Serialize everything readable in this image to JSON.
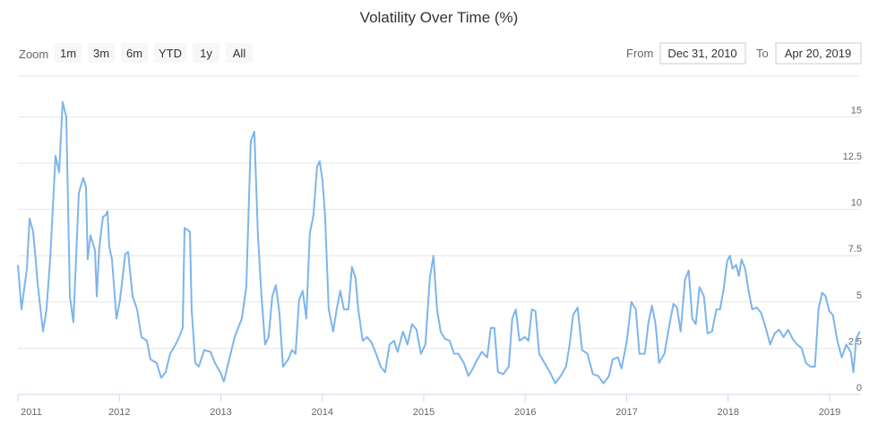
{
  "chart_data": {
    "type": "line",
    "title": "Volatility Over Time (%)",
    "range_selector": {
      "label": "Zoom",
      "buttons": [
        "1m",
        "3m",
        "6m",
        "YTD",
        "1y",
        "All"
      ]
    },
    "date_inputs": {
      "from_label": "From",
      "from": "Dec 31, 2010",
      "to_label": "To",
      "to": "Apr 20, 2019"
    },
    "xlim": [
      2011,
      2019.3
    ],
    "xticks": [
      2011,
      2012,
      2013,
      2014,
      2015,
      2016,
      2017,
      2018,
      2019
    ],
    "ylim": [
      0,
      17.2
    ],
    "yticks": [
      0,
      2.5,
      5,
      7.5,
      10,
      12.5,
      15
    ],
    "grid": true,
    "series": [
      {
        "name": "Volatility",
        "color": "#7cb5ec",
        "x": [
          2011.0,
          2011.035,
          2011.088,
          2011.115,
          2011.15,
          2011.177,
          2011.194,
          2011.247,
          2011.282,
          2011.318,
          2011.371,
          2011.406,
          2011.441,
          2011.477,
          2011.512,
          2011.547,
          2011.6,
          2011.644,
          2011.671,
          2011.688,
          2011.715,
          2011.759,
          2011.777,
          2011.803,
          2011.838,
          2011.865,
          2011.883,
          2011.9,
          2011.927,
          2011.971,
          2012.006,
          2012.059,
          2012.086,
          2012.13,
          2012.174,
          2012.218,
          2012.271,
          2012.306,
          2012.368,
          2012.412,
          2012.456,
          2012.5,
          2012.553,
          2012.589,
          2012.624,
          2012.642,
          2012.695,
          2012.712,
          2012.748,
          2012.783,
          2012.836,
          2012.898,
          2012.942,
          2012.995,
          2013.03,
          2013.083,
          2013.136,
          2013.207,
          2013.251,
          2013.295,
          2013.33,
          2013.365,
          2013.401,
          2013.436,
          2013.471,
          2013.507,
          2013.542,
          2013.577,
          2013.613,
          2013.665,
          2013.701,
          2013.736,
          2013.771,
          2013.807,
          2013.842,
          2013.877,
          2013.913,
          2013.948,
          2013.974,
          2014.001,
          2014.027,
          2014.063,
          2014.107,
          2014.142,
          2014.177,
          2014.213,
          2014.257,
          2014.292,
          2014.327,
          2014.354,
          2014.398,
          2014.442,
          2014.486,
          2014.53,
          2014.575,
          2014.619,
          2014.663,
          2014.707,
          2014.742,
          2014.795,
          2014.839,
          2014.884,
          2014.928,
          2014.972,
          2015.016,
          2015.06,
          2015.095,
          2015.131,
          2015.166,
          2015.21,
          2015.254,
          2015.298,
          2015.342,
          2015.395,
          2015.44,
          2015.484,
          2015.528,
          2015.572,
          2015.625,
          2015.66,
          2015.696,
          2015.731,
          2015.784,
          2015.837,
          2015.872,
          2015.907,
          2015.943,
          2015.996,
          2016.031,
          2016.066,
          2016.101,
          2016.137,
          2016.19,
          2016.243,
          2016.296,
          2016.349,
          2016.402,
          2016.437,
          2016.472,
          2016.516,
          2016.56,
          2016.613,
          2016.666,
          2016.719,
          2016.772,
          2016.825,
          2016.861,
          2016.914,
          2016.949,
          2017.002,
          2017.046,
          2017.09,
          2017.125,
          2017.178,
          2017.214,
          2017.249,
          2017.284,
          2017.319,
          2017.372,
          2017.425,
          2017.461,
          2017.496,
          2017.531,
          2017.575,
          2017.611,
          2017.646,
          2017.681,
          2017.717,
          2017.761,
          2017.796,
          2017.84,
          2017.884,
          2017.92,
          2017.955,
          2017.99,
          2018.017,
          2018.043,
          2018.079,
          2018.105,
          2018.132,
          2018.167,
          2018.202,
          2018.237,
          2018.282,
          2018.326,
          2018.37,
          2018.414,
          2018.458,
          2018.502,
          2018.546,
          2018.59,
          2018.635,
          2018.679,
          2018.723,
          2018.767,
          2018.811,
          2018.855,
          2018.89,
          2018.926,
          2018.961,
          2018.996,
          2019.032,
          2019.076,
          2019.12,
          2019.164,
          2019.208,
          2019.235,
          2019.261,
          2019.297
        ],
        "values": [
          7,
          4.6,
          6.8,
          9.5,
          8.8,
          7.2,
          6,
          3.4,
          4.6,
          7.3,
          12.9,
          12,
          15.8,
          15,
          5.3,
          3.9,
          10.9,
          11.7,
          11.2,
          7.3,
          8.6,
          7.8,
          5.3,
          8,
          9.6,
          9.7,
          9.9,
          8,
          7.3,
          4.1,
          5.1,
          7.6,
          7.7,
          5.3,
          4.6,
          3.1,
          2.9,
          1.9,
          1.7,
          0.9,
          1.2,
          2.2,
          2.7,
          3.1,
          3.6,
          9,
          8.8,
          4.6,
          1.7,
          1.5,
          2.4,
          2.3,
          1.7,
          1.2,
          0.7,
          1.9,
          3.1,
          4.1,
          5.8,
          13.7,
          14.2,
          8.7,
          5.3,
          2.7,
          3.1,
          5.3,
          5.9,
          4.4,
          1.5,
          1.9,
          2.4,
          2.2,
          5.1,
          5.6,
          4.1,
          8.7,
          9.7,
          12.3,
          12.6,
          11.6,
          9.7,
          4.6,
          3.4,
          4.6,
          5.6,
          4.6,
          4.6,
          6.9,
          6.3,
          4.6,
          2.9,
          3.1,
          2.8,
          2.2,
          1.5,
          1.2,
          2.7,
          2.9,
          2.3,
          3.4,
          2.7,
          3.8,
          3.5,
          2.2,
          2.7,
          6.3,
          7.5,
          4.6,
          3.4,
          3,
          2.9,
          2.2,
          2.2,
          1.7,
          1,
          1.4,
          1.9,
          2.3,
          2,
          3.6,
          3.6,
          1.2,
          1.1,
          1.5,
          4.1,
          4.6,
          2.9,
          3.1,
          2.9,
          4.6,
          4.5,
          2.2,
          1.7,
          1.2,
          0.6,
          1,
          1.5,
          2.7,
          4.3,
          4.7,
          2.4,
          2.2,
          1.1,
          1,
          0.6,
          1,
          1.9,
          2,
          1.4,
          2.9,
          5,
          4.6,
          2.2,
          2.2,
          3.9,
          4.8,
          3.8,
          1.7,
          2.2,
          3.9,
          4.9,
          4.7,
          3.4,
          6.2,
          6.7,
          4.1,
          3.8,
          5.8,
          5.3,
          3.3,
          3.4,
          4.6,
          4.6,
          5.7,
          7.2,
          7.5,
          6.8,
          7,
          6.4,
          7.3,
          6.8,
          5.6,
          4.6,
          4.7,
          4.4,
          3.6,
          2.7,
          3.3,
          3.5,
          3.1,
          3.5,
          3,
          2.7,
          2.5,
          1.7,
          1.5,
          1.5,
          4.6,
          5.5,
          5.3,
          4.5,
          4.3,
          2.9,
          2,
          2.7,
          2.3,
          1.2,
          3,
          3.4
        ]
      }
    ]
  }
}
